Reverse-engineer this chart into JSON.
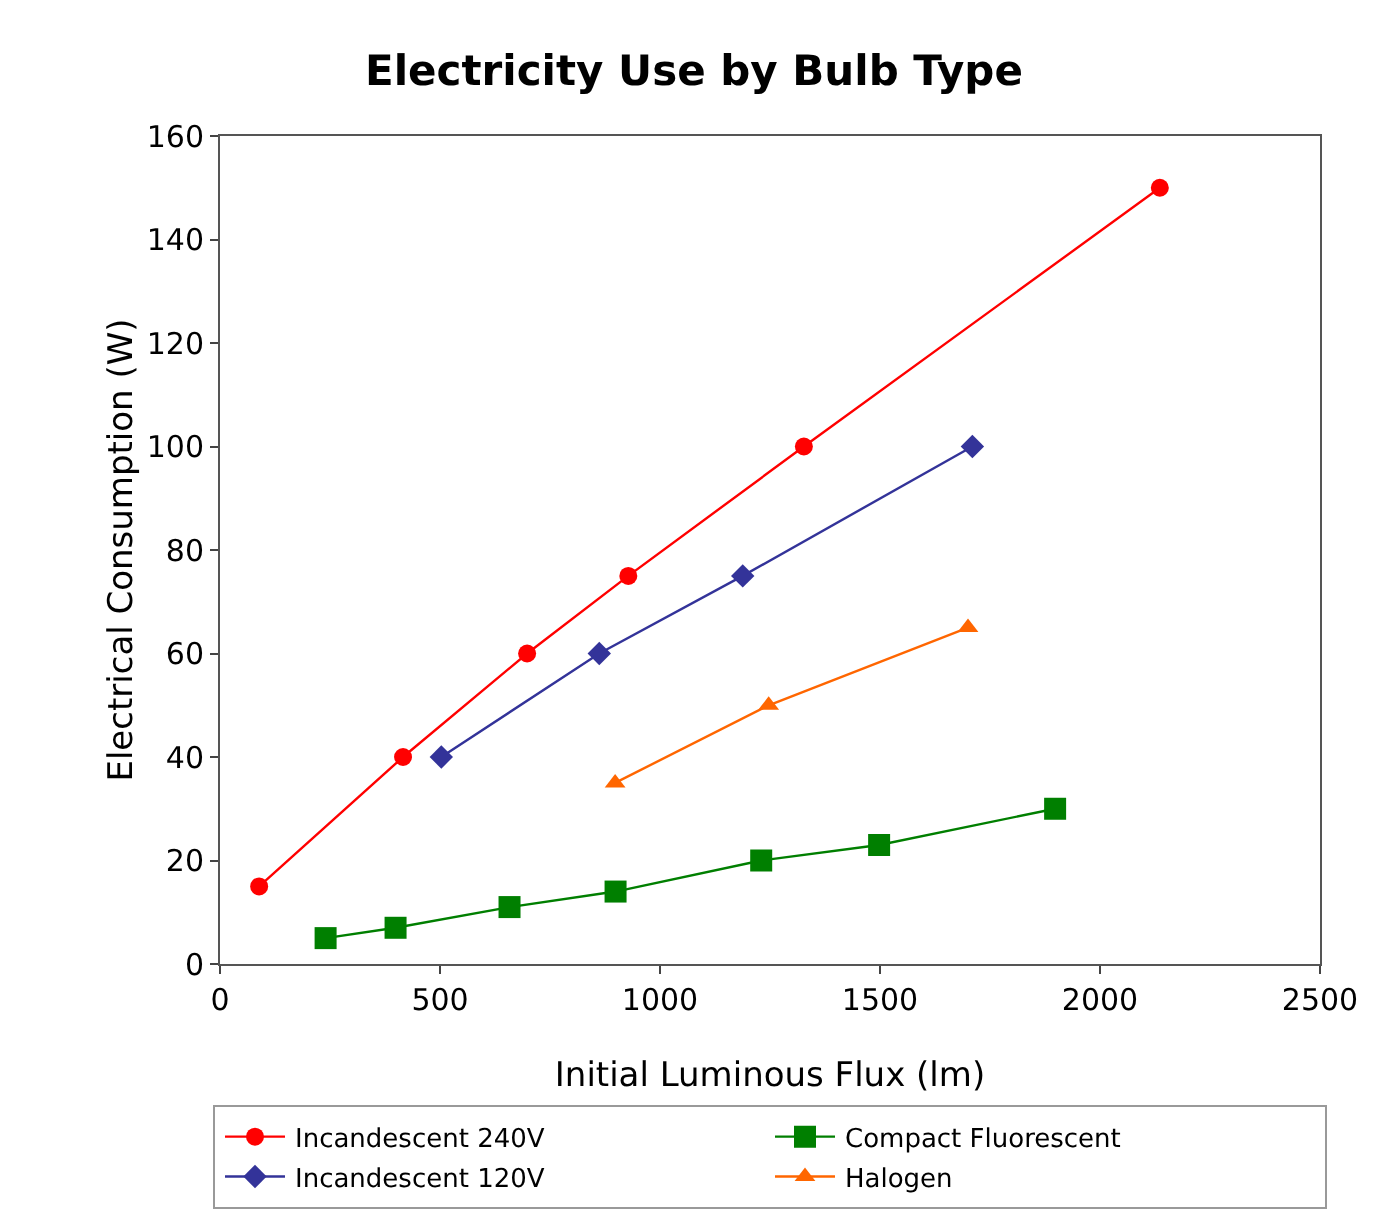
{
  "chart_data": {
    "type": "line",
    "title": "Electricity Use by Bulb Type",
    "xlabel": "Initial Luminous Flux (lm)",
    "ylabel": "Electrical Consumption (W)",
    "xlim": [
      0,
      2500
    ],
    "xticks": [
      0,
      500,
      1000,
      1500,
      2000,
      2500
    ],
    "ylim": [
      0,
      160
    ],
    "yticks": [
      0,
      20,
      40,
      60,
      80,
      100,
      120,
      140,
      160
    ],
    "grid": false,
    "legend": "bottom",
    "line_style": "solid",
    "series": [
      {
        "name": "Incandescent 240V",
        "color": "#ff0000",
        "marker": "circle",
        "x": [
          89,
          416,
          698,
          928,
          1327,
          2136
        ],
        "values": [
          15,
          40,
          60,
          75,
          100,
          150
        ]
      },
      {
        "name": "Incandescent 120V",
        "color": "#333399",
        "marker": "diamond",
        "x": [
          503,
          862,
          1188,
          1710
        ],
        "values": [
          40,
          60,
          75,
          100
        ]
      },
      {
        "name": "Compact Fluorescent",
        "color": "#007f00",
        "marker": "square",
        "x": [
          240,
          399,
          658,
          899,
          1230,
          1498,
          1898
        ],
        "values": [
          5,
          7,
          11,
          14,
          20,
          23,
          30
        ]
      },
      {
        "name": "Halogen",
        "color": "#ff6600",
        "marker": "triangle",
        "x": [
          898,
          1247,
          1700
        ],
        "values": [
          35,
          50,
          65
        ]
      }
    ]
  }
}
